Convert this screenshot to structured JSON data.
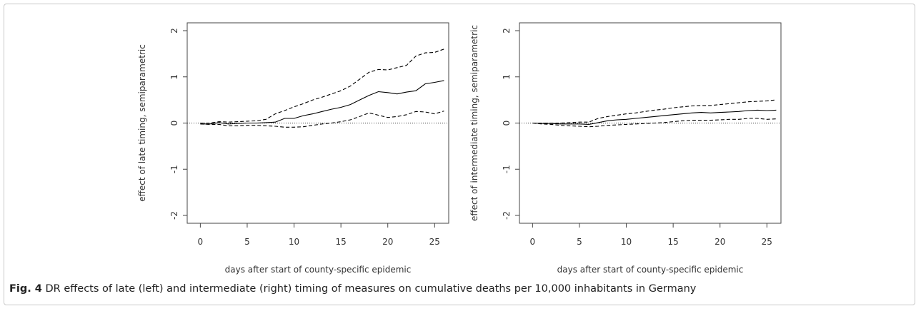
{
  "chart_data": [
    {
      "type": "line",
      "xlabel": "days after start of county-specific epidemic",
      "ylabel": "effect of late timing, semiparametric",
      "x": [
        0,
        1,
        2,
        3,
        4,
        5,
        6,
        7,
        8,
        9,
        10,
        11,
        12,
        13,
        14,
        15,
        16,
        17,
        18,
        19,
        20,
        21,
        22,
        23,
        24,
        25,
        26
      ],
      "xlim": [
        -1.4,
        26.5
      ],
      "xticks": [
        0,
        5,
        10,
        15,
        20,
        25
      ],
      "ylim": [
        -2.17,
        2.17
      ],
      "yticks": [
        -2,
        -1,
        0,
        1,
        2
      ],
      "reference_line": 0,
      "series": [
        {
          "color": "#000000",
          "dash": false,
          "values": [
            -0.02,
            -0.02,
            0.01,
            -0.02,
            -0.01,
            0,
            0,
            0.01,
            0.02,
            0.1,
            0.1,
            0.16,
            0.2,
            0.25,
            0.3,
            0.34,
            0.4,
            0.5,
            0.6,
            0.68,
            0.66,
            0.63,
            0.67,
            0.7,
            0.85,
            0.88,
            0.92
          ]
        },
        {
          "color": "#000000",
          "dash": true,
          "values": [
            0,
            0,
            0.03,
            0.02,
            0.03,
            0.04,
            0.05,
            0.08,
            0.2,
            0.27,
            0.35,
            0.42,
            0.5,
            0.56,
            0.63,
            0.7,
            0.8,
            0.95,
            1.1,
            1.16,
            1.15,
            1.2,
            1.25,
            1.45,
            1.52,
            1.53,
            1.6
          ]
        },
        {
          "color": "#000000",
          "dash": true,
          "values": [
            -0.02,
            -0.03,
            -0.03,
            -0.06,
            -0.06,
            -0.05,
            -0.05,
            -0.06,
            -0.07,
            -0.09,
            -0.09,
            -0.08,
            -0.05,
            -0.02,
            0,
            0.03,
            0.07,
            0.14,
            0.22,
            0.17,
            0.12,
            0.14,
            0.18,
            0.25,
            0.24,
            0.2,
            0.26
          ]
        }
      ]
    },
    {
      "type": "line",
      "xlabel": "days after start of county-specific epidemic",
      "ylabel": "effect of intermediate timing, semiparametric",
      "x": [
        0,
        1,
        2,
        3,
        4,
        5,
        6,
        7,
        8,
        9,
        10,
        11,
        12,
        13,
        14,
        15,
        16,
        17,
        18,
        19,
        20,
        21,
        22,
        23,
        24,
        25,
        26
      ],
      "xlim": [
        -1.4,
        26.5
      ],
      "xticks": [
        0,
        5,
        10,
        15,
        20,
        25
      ],
      "ylim": [
        -2.17,
        2.17
      ],
      "yticks": [
        -2,
        -1,
        0,
        1,
        2
      ],
      "reference_line": 0,
      "series": [
        {
          "color": "#000000",
          "dash": false,
          "values": [
            0,
            -0.01,
            -0.01,
            -0.02,
            -0.02,
            -0.02,
            -0.03,
            0.01,
            0.05,
            0.07,
            0.08,
            0.1,
            0.12,
            0.14,
            0.16,
            0.18,
            0.2,
            0.22,
            0.23,
            0.22,
            0.23,
            0.24,
            0.25,
            0.27,
            0.28,
            0.27,
            0.28
          ]
        },
        {
          "color": "#000000",
          "dash": true,
          "values": [
            0,
            0,
            0,
            0,
            0.01,
            0.02,
            0.02,
            0.1,
            0.14,
            0.17,
            0.2,
            0.22,
            0.25,
            0.28,
            0.3,
            0.33,
            0.35,
            0.37,
            0.38,
            0.38,
            0.4,
            0.42,
            0.44,
            0.46,
            0.47,
            0.48,
            0.5
          ]
        },
        {
          "color": "#000000",
          "dash": true,
          "values": [
            0,
            -0.02,
            -0.03,
            -0.05,
            -0.06,
            -0.07,
            -0.08,
            -0.07,
            -0.05,
            -0.04,
            -0.03,
            -0.02,
            -0.01,
            0,
            0.01,
            0.03,
            0.05,
            0.06,
            0.06,
            0.06,
            0.07,
            0.08,
            0.08,
            0.1,
            0.1,
            0.08,
            0.09
          ]
        }
      ]
    }
  ],
  "figure": {
    "label": "Fig. 4",
    "caption": "DR effects of late (left) and intermediate (right) timing of measures on cumulative deaths per 10,000 inhabitants in Germany"
  }
}
